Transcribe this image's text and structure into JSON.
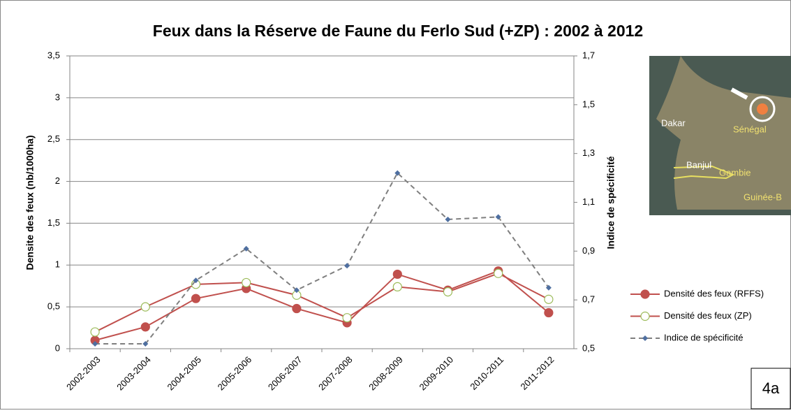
{
  "chart_data": {
    "type": "line",
    "title": "Feux dans la Réserve de Faune du Ferlo Sud (+ZP) : 2002 à 2012",
    "y_label": "Densite des feux (nb/1000ha)",
    "y2_label": "Indice de spécificité",
    "categories": [
      "2002-2003",
      "2003-2004",
      "2004-2005",
      "2005-2006",
      "2006-2007",
      "2007-2008",
      "2008-2009",
      "2009-2010",
      "2010-2011",
      "2011-2012"
    ],
    "series": [
      {
        "name": "Densité des feux (RFFS)",
        "color": "#c0504d",
        "marker": "filled-circle",
        "values": [
          0.1,
          0.26,
          0.6,
          0.72,
          0.48,
          0.31,
          0.89,
          0.7,
          0.93,
          0.43
        ]
      },
      {
        "name": "Densité des feux (ZP)",
        "color": "#c0504d",
        "marker": "open-circle",
        "values": [
          0.2,
          0.5,
          0.77,
          0.79,
          0.64,
          0.37,
          0.74,
          0.68,
          0.9,
          0.59
        ]
      },
      {
        "name": "Indice de spécificité",
        "color": "#7f7f7f",
        "marker": "diamond",
        "marker_color": "#4f6fa0",
        "dashed": true,
        "axis": "y2",
        "values": [
          0.52,
          0.52,
          0.78,
          0.91,
          0.74,
          0.84,
          1.22,
          1.03,
          1.04,
          0.75
        ]
      }
    ],
    "ylim": [
      0,
      3.5
    ],
    "yticks": [
      0,
      {
        "value": 0.5,
        "label": "0,5"
      },
      1,
      {
        "value": 1.5,
        "label": "1,5"
      },
      2,
      {
        "value": 2.5,
        "label": "2,5"
      },
      3,
      {
        "value": 3.5,
        "label": "3,5"
      }
    ],
    "y2lim": [
      0.5,
      1.7
    ],
    "y2ticks": [
      {
        "value": 0.5,
        "label": "0,5"
      },
      {
        "value": 0.7,
        "label": "0,7"
      },
      {
        "value": 0.9,
        "label": "0,9"
      },
      {
        "value": 1.1,
        "label": "1,1"
      },
      {
        "value": 1.3,
        "label": "1,3"
      },
      {
        "value": 1.5,
        "label": "1,5"
      },
      {
        "value": 1.7,
        "label": "1,7"
      }
    ],
    "grid": true,
    "legend": "right",
    "map_labels": [
      "Dakar",
      "Sénégal",
      "Banjul",
      "Gambie",
      "Guinée-B"
    ],
    "figure_label": "4a"
  }
}
